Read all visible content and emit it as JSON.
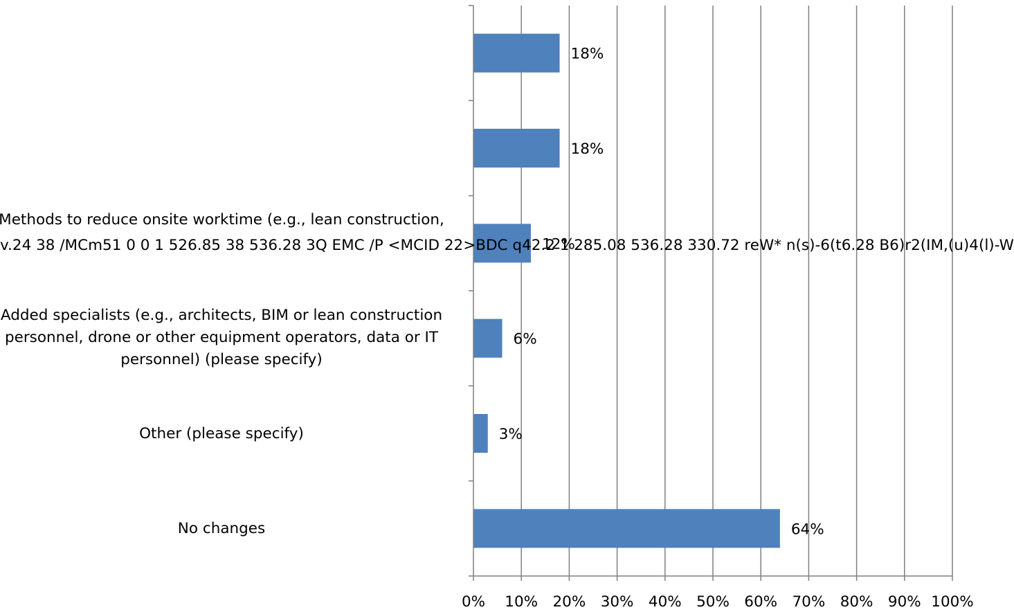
{
  "chart_data": {
    "type": "bar",
    "orientation": "horizontal",
    "categories": [
      "",
      "",
      "Methods to reduce onsite worktime (e.g., lean construction,",
      "Added specialists (e.g., architects, BIM or lean construction personnel, drone or other equipment operators, data or IT personnel) (please specify)",
      "Other (please specify)",
      "No changes"
    ],
    "values": [
      18,
      18,
      12,
      6,
      3,
      64
    ],
    "value_labels": [
      "18%",
      "18%",
      "12%",
      "6%",
      "3%",
      "64%"
    ],
    "xlim": [
      0,
      100
    ],
    "x_ticks": [
      "0%",
      "10%",
      "20%",
      "30%",
      "40%",
      "50%",
      "60%",
      "70%",
      "80%",
      "90%",
      "100%"
    ],
    "grid": "vertical",
    "bar_color": "#4f81bd",
    "grid_color": "#7f7f7f",
    "overlay_text": "v.24 38 /MCm51 0 0 1 526.85 38 536.28 3Q EMC /P <MCID 22>BDC q42.2 1 285.08 536.28 330.72 reW* n(s)-6(t6.28 B6)r2(IM,(u)4(l)-W"
  }
}
